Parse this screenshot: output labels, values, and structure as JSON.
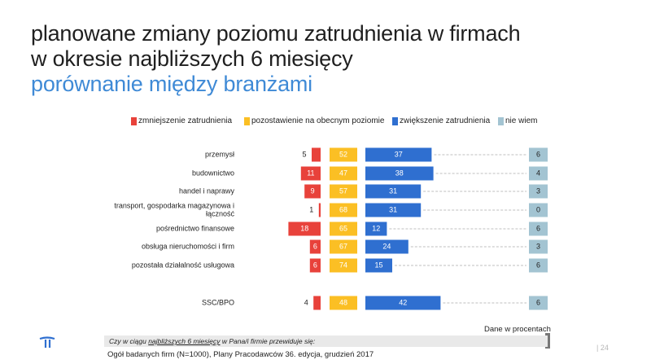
{
  "title": {
    "line1": "planowane zmiany poziomu zatrudnienia w firmach",
    "line2": "w okresie najbliższych 6 miesięcy",
    "line3": "porównanie między branżami"
  },
  "colors": {
    "decrease": "#e8423b",
    "keep": "#fbbf24",
    "increase": "#2f6fd0",
    "dontknow": "#a3c4d2",
    "accent": "#3f8ad6"
  },
  "chart_data": {
    "type": "bar",
    "layout": "stacked-horizontal-diverging",
    "series": [
      {
        "name": "zmniejszenie zatrudnienia",
        "values": [
          5,
          11,
          9,
          1,
          18,
          6,
          6,
          4
        ]
      },
      {
        "name": "pozostawienie na obecnym poziomie",
        "values": [
          52,
          47,
          57,
          68,
          65,
          67,
          74,
          48
        ]
      },
      {
        "name": "zwiększenie zatrudnienia",
        "values": [
          37,
          38,
          31,
          31,
          12,
          24,
          15,
          42
        ]
      },
      {
        "name": "nie wiem",
        "values": [
          6,
          4,
          3,
          0,
          6,
          3,
          6,
          6
        ]
      }
    ],
    "categories": [
      "przemysł",
      "budownictwo",
      "handel i naprawy",
      "transport, gospodarka magazynowa i łączność",
      "pośrednictwo finansowe",
      "obsługa nieruchomości i firm",
      "pozostała działalność usługowa",
      "SSC/BPO"
    ],
    "category_lines": [
      [
        "przemysł"
      ],
      [
        "budownictwo"
      ],
      [
        "handel i naprawy"
      ],
      [
        "transport, gospodarka magazynowa i",
        "łączność"
      ],
      [
        "pośrednictwo finansowe"
      ],
      [
        "obsługa nieruchomości i firm"
      ],
      [
        "pozostała działalność usługowa"
      ],
      [
        "SSC/BPO"
      ]
    ],
    "legend_position": "top",
    "grid": false
  },
  "footer": {
    "question_prefix": "Czy w ciągu ",
    "question_underlined": "najbliższych 6 miesięcy",
    "question_suffix": " w Pana/i firmie przewiduje się:",
    "source": "Ogół badanych firm (N=1000), Plany Pracodawców 36. edycja, grudzień 2017",
    "note": "Dane w procentach",
    "page": "| 24"
  }
}
